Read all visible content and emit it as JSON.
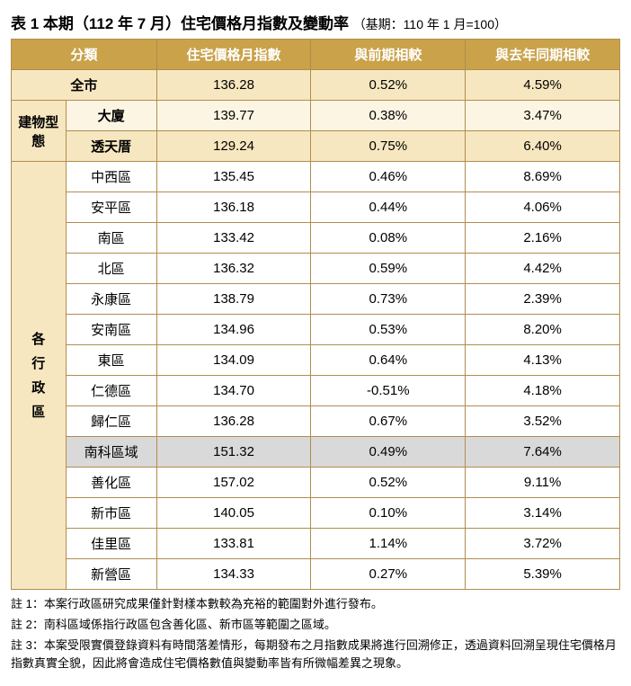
{
  "title_main": "表 1 本期（112 年 7 月）住宅價格月指數及變動率",
  "title_sub": "（基期：110 年 1 月=100）",
  "headers": {
    "category": "分類",
    "index": "住宅價格月指數",
    "vs_prev": "與前期相較",
    "vs_yoy": "與去年同期相較"
  },
  "labels": {
    "city_all": "全市",
    "building_type": "建物型態",
    "districts": "各行政區",
    "districts_v1": "各",
    "districts_v2": "行",
    "districts_v3": "政",
    "districts_v4": "區"
  },
  "city": {
    "index": "136.28",
    "prev": "0.52%",
    "yoy": "4.59%"
  },
  "building": [
    {
      "name": "大廈",
      "index": "139.77",
      "prev": "0.38%",
      "yoy": "3.47%"
    },
    {
      "name": "透天厝",
      "index": "129.24",
      "prev": "0.75%",
      "yoy": "6.40%"
    }
  ],
  "rows": [
    {
      "name": "中西區",
      "index": "135.45",
      "prev": "0.46%",
      "yoy": "8.69%",
      "hl": false
    },
    {
      "name": "安平區",
      "index": "136.18",
      "prev": "0.44%",
      "yoy": "4.06%",
      "hl": false
    },
    {
      "name": "南區",
      "index": "133.42",
      "prev": "0.08%",
      "yoy": "2.16%",
      "hl": false
    },
    {
      "name": "北區",
      "index": "136.32",
      "prev": "0.59%",
      "yoy": "4.42%",
      "hl": false
    },
    {
      "name": "永康區",
      "index": "138.79",
      "prev": "0.73%",
      "yoy": "2.39%",
      "hl": false
    },
    {
      "name": "安南區",
      "index": "134.96",
      "prev": "0.53%",
      "yoy": "8.20%",
      "hl": false
    },
    {
      "name": "東區",
      "index": "134.09",
      "prev": "0.64%",
      "yoy": "4.13%",
      "hl": false
    },
    {
      "name": "仁德區",
      "index": "134.70",
      "prev": "-0.51%",
      "yoy": "4.18%",
      "hl": false
    },
    {
      "name": "歸仁區",
      "index": "136.28",
      "prev": "0.67%",
      "yoy": "3.52%",
      "hl": false
    },
    {
      "name": "南科區域",
      "index": "151.32",
      "prev": "0.49%",
      "yoy": "7.64%",
      "hl": true
    },
    {
      "name": "善化區",
      "index": "157.02",
      "prev": "0.52%",
      "yoy": "9.11%",
      "hl": false
    },
    {
      "name": "新市區",
      "index": "140.05",
      "prev": "0.10%",
      "yoy": "3.14%",
      "hl": false
    },
    {
      "name": "佳里區",
      "index": "133.81",
      "prev": "1.14%",
      "yoy": "3.72%",
      "hl": false
    },
    {
      "name": "新營區",
      "index": "134.33",
      "prev": "0.27%",
      "yoy": "5.39%",
      "hl": false
    }
  ],
  "notes": {
    "n1": "註 1：本案行政區研究成果僅針對樣本數較為充裕的範圍對外進行發布。",
    "n2": "註 2：南科區域係指行政區包含善化區、新市區等範圍之區域。",
    "n3": "註 3：本案受限實價登錄資料有時間落差情形，每期發布之月指數成果將進行回溯修正，透過資料回溯呈現住宅價格月指數真實全貌，因此將會造成住宅價格數值與變動率皆有所微幅差異之現象。"
  },
  "colors": {
    "header_bg": "#c9a24a",
    "header_fg": "#ffffff",
    "band_dark": "#f7e7c0",
    "band_light": "#fcf5e3",
    "grey": "#d9d9d9",
    "border": "#b08d4f"
  }
}
